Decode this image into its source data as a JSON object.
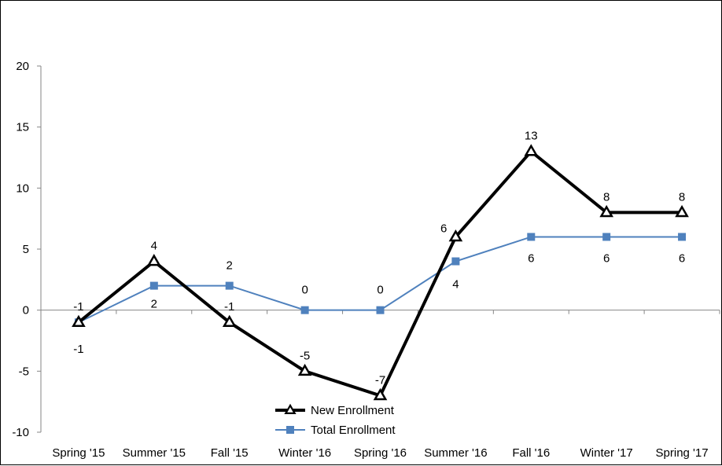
{
  "chart_data": {
    "type": "line",
    "categories": [
      "Spring '15",
      "Summer '15",
      "Fall '15",
      "Winter '16",
      "Spring '16",
      "Summer '16",
      "Fall '16",
      "Winter '17",
      "Spring '17"
    ],
    "ylim": [
      -10,
      20
    ],
    "yticks": [
      "20",
      "15",
      "10",
      "5",
      "0",
      "-5",
      "-10"
    ],
    "grid": false,
    "legend_position": "bottom-center",
    "series": [
      {
        "name": "New Enrollment",
        "values": [
          -1,
          4,
          -1,
          -5,
          -7,
          6,
          13,
          8,
          8
        ],
        "labels": [
          "-1",
          "4",
          "-1",
          "-5",
          "-7",
          "6",
          "13",
          "8",
          "8"
        ],
        "color": "#000000",
        "marker": "triangle"
      },
      {
        "name": "Total Enrollment",
        "values": [
          -1,
          2,
          2,
          0,
          0,
          4,
          6,
          6,
          6
        ],
        "labels": [
          "-1",
          "2",
          "2",
          "0",
          "0",
          "4",
          "6",
          "6",
          "6"
        ],
        "color": "#4F81BD",
        "marker": "square"
      }
    ]
  }
}
